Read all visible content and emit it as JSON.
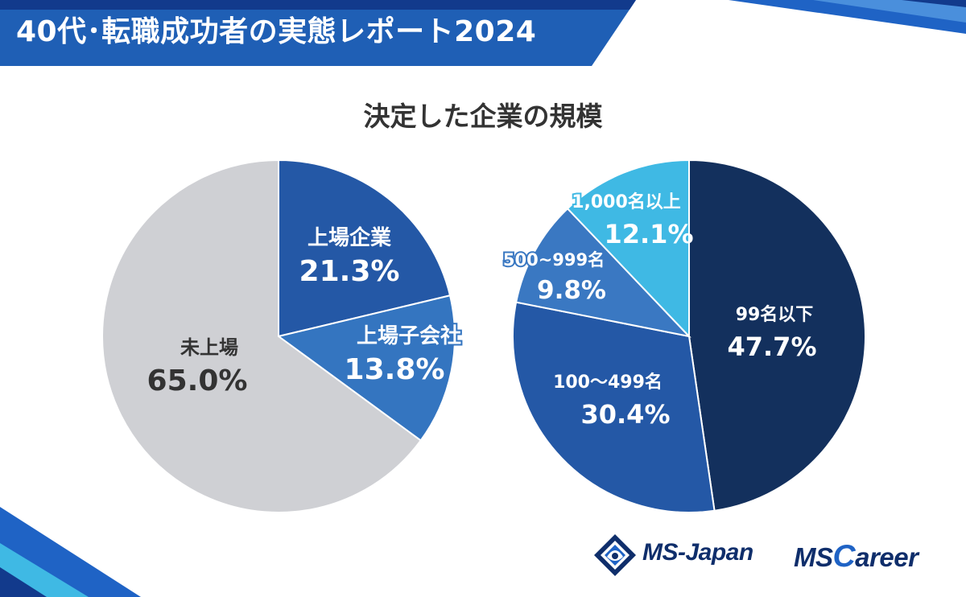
{
  "header": {
    "title": "40代･転職成功者の実態レポート2024"
  },
  "chart_title": "決定した企業の規模",
  "colors": {
    "header_blue": "#1f5fb5",
    "stripe_dark": "#123a8c",
    "unlisted_gray": "#cfd0d4",
    "listed_blue": "#2458a6",
    "subsidiary_blue": "#3475c0",
    "navy": "#13305d",
    "mid_blue": "#2458a6",
    "steel_blue": "#3a78c2",
    "sky_blue": "#3fb9e4",
    "logo_navy": "#0f2e6b",
    "logo_blue": "#1f63c5"
  },
  "chart_data": [
    {
      "type": "pie",
      "title": "決定した企業の規模",
      "slices": [
        {
          "label": "上場企業",
          "value": 21.3,
          "display": "21.3%"
        },
        {
          "label": "上場子会社",
          "value": 13.8,
          "display": "13.8%"
        },
        {
          "label": "未上場",
          "value": 65.0,
          "display": "65.0%"
        }
      ],
      "start": "12 o'clock, clockwise"
    },
    {
      "type": "pie",
      "title": "決定した企業の規模",
      "slices": [
        {
          "label": "99名以下",
          "value": 47.7,
          "display": "47.7%"
        },
        {
          "label": "100～499名",
          "value": 30.4,
          "display": "30.4%"
        },
        {
          "label": "500~999名",
          "value": 9.8,
          "display": "9.8%"
        },
        {
          "label": "1,000名以上",
          "value": 12.1,
          "display": "12.1%"
        }
      ],
      "start": "12 o'clock, clockwise"
    }
  ],
  "logos": {
    "ms_japan": "MS-Japan",
    "ms_career_ms": "MS",
    "ms_career_c": "C",
    "ms_career_rest": "areer"
  }
}
